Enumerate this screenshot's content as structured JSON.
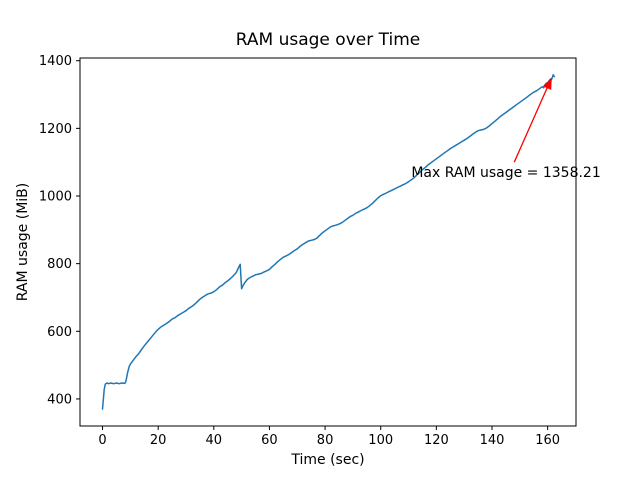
{
  "figure": {
    "background": "#ffffff"
  },
  "chart_data": {
    "type": "line",
    "title": "RAM usage over Time",
    "xlabel": "Time (sec)",
    "ylabel": "RAM usage (MiB)",
    "xlim": [
      -8.1,
      170.2
    ],
    "ylim": [
      320,
      1408
    ],
    "xticks": [
      0,
      20,
      40,
      60,
      80,
      100,
      120,
      140,
      160
    ],
    "yticks": [
      400,
      600,
      800,
      1000,
      1200,
      1400
    ],
    "grid": false,
    "legend": null,
    "series": [
      {
        "name": "ram-usage",
        "color": "#1f77b4",
        "points": [
          [
            0,
            370
          ],
          [
            0.6,
            428
          ],
          [
            1,
            444
          ],
          [
            1.6,
            447
          ],
          [
            2.2,
            445
          ],
          [
            3,
            447
          ],
          [
            4,
            445
          ],
          [
            5,
            447
          ],
          [
            6,
            445
          ],
          [
            7,
            447
          ],
          [
            8,
            446
          ],
          [
            8.4,
            452
          ],
          [
            9,
            478
          ],
          [
            9.6,
            496
          ],
          [
            10,
            503
          ],
          [
            11,
            514
          ],
          [
            12,
            525
          ],
          [
            13,
            534
          ],
          [
            14,
            546
          ],
          [
            15,
            557
          ],
          [
            16,
            567
          ],
          [
            17,
            577
          ],
          [
            18,
            587
          ],
          [
            19,
            597
          ],
          [
            20,
            606
          ],
          [
            21,
            613
          ],
          [
            22,
            618
          ],
          [
            23,
            623
          ],
          [
            24,
            629
          ],
          [
            25,
            636
          ],
          [
            26,
            640
          ],
          [
            27,
            646
          ],
          [
            28,
            651
          ],
          [
            29,
            656
          ],
          [
            30,
            661
          ],
          [
            31,
            668
          ],
          [
            32,
            673
          ],
          [
            33,
            679
          ],
          [
            34,
            687
          ],
          [
            35,
            695
          ],
          [
            36,
            701
          ],
          [
            37,
            706
          ],
          [
            38,
            711
          ],
          [
            39,
            713
          ],
          [
            40,
            717
          ],
          [
            41,
            723
          ],
          [
            42,
            731
          ],
          [
            43,
            736
          ],
          [
            44,
            743
          ],
          [
            45,
            749
          ],
          [
            46,
            756
          ],
          [
            47,
            764
          ],
          [
            48,
            773
          ],
          [
            49,
            790
          ],
          [
            49.5,
            798
          ],
          [
            50,
            726
          ],
          [
            50.5,
            735
          ],
          [
            51,
            742
          ],
          [
            52,
            753
          ],
          [
            53,
            759
          ],
          [
            54,
            763
          ],
          [
            55,
            767
          ],
          [
            56,
            769
          ],
          [
            57,
            771
          ],
          [
            58,
            775
          ],
          [
            59,
            779
          ],
          [
            60,
            783
          ],
          [
            61,
            791
          ],
          [
            62,
            798
          ],
          [
            63,
            806
          ],
          [
            64,
            813
          ],
          [
            65,
            819
          ],
          [
            66,
            823
          ],
          [
            67,
            827
          ],
          [
            68,
            833
          ],
          [
            69,
            839
          ],
          [
            70,
            844
          ],
          [
            71,
            851
          ],
          [
            72,
            857
          ],
          [
            73,
            862
          ],
          [
            74,
            867
          ],
          [
            75,
            869
          ],
          [
            76,
            871
          ],
          [
            77,
            875
          ],
          [
            78,
            883
          ],
          [
            79,
            891
          ],
          [
            80,
            897
          ],
          [
            81,
            903
          ],
          [
            82,
            909
          ],
          [
            83,
            912
          ],
          [
            84,
            914
          ],
          [
            85,
            917
          ],
          [
            86,
            921
          ],
          [
            87,
            927
          ],
          [
            88,
            933
          ],
          [
            89,
            939
          ],
          [
            90,
            943
          ],
          [
            91,
            949
          ],
          [
            92,
            953
          ],
          [
            93,
            957
          ],
          [
            94,
            961
          ],
          [
            95,
            965
          ],
          [
            96,
            971
          ],
          [
            97,
            978
          ],
          [
            98,
            986
          ],
          [
            99,
            994
          ],
          [
            100,
            1001
          ],
          [
            101,
            1005
          ],
          [
            102,
            1009
          ],
          [
            103,
            1013
          ],
          [
            104,
            1017
          ],
          [
            105,
            1021
          ],
          [
            106,
            1025
          ],
          [
            107,
            1029
          ],
          [
            108,
            1033
          ],
          [
            109,
            1037
          ],
          [
            110,
            1042
          ],
          [
            111,
            1048
          ],
          [
            112,
            1054
          ],
          [
            113,
            1062
          ],
          [
            114,
            1070
          ],
          [
            115,
            1078
          ],
          [
            116,
            1084
          ],
          [
            117,
            1092
          ],
          [
            118,
            1098
          ],
          [
            119,
            1104
          ],
          [
            120,
            1110
          ],
          [
            121,
            1116
          ],
          [
            122,
            1122
          ],
          [
            123,
            1128
          ],
          [
            124,
            1134
          ],
          [
            125,
            1140
          ],
          [
            126,
            1145
          ],
          [
            127,
            1150
          ],
          [
            128,
            1155
          ],
          [
            129,
            1160
          ],
          [
            130,
            1165
          ],
          [
            131,
            1170
          ],
          [
            132,
            1176
          ],
          [
            133,
            1182
          ],
          [
            134,
            1188
          ],
          [
            135,
            1193
          ],
          [
            136,
            1195
          ],
          [
            137,
            1197
          ],
          [
            138,
            1201
          ],
          [
            139,
            1207
          ],
          [
            140,
            1214
          ],
          [
            141,
            1221
          ],
          [
            142,
            1228
          ],
          [
            143,
            1235
          ],
          [
            144,
            1241
          ],
          [
            145,
            1247
          ],
          [
            146,
            1253
          ],
          [
            147,
            1259
          ],
          [
            148,
            1265
          ],
          [
            149,
            1271
          ],
          [
            150,
            1277
          ],
          [
            151,
            1283
          ],
          [
            152,
            1289
          ],
          [
            153,
            1295
          ],
          [
            154,
            1301
          ],
          [
            155,
            1307
          ],
          [
            156,
            1311
          ],
          [
            157,
            1317
          ],
          [
            158,
            1323
          ],
          [
            158.6,
            1320
          ],
          [
            159,
            1328
          ],
          [
            159.6,
            1334
          ],
          [
            160,
            1331
          ],
          [
            160.5,
            1340
          ],
          [
            161,
            1346
          ],
          [
            161.4,
            1344
          ],
          [
            161.8,
            1352
          ],
          [
            162,
            1358.21
          ],
          [
            162.4,
            1353
          ]
        ]
      }
    ],
    "annotation": {
      "text": "Max RAM usage = 1358.21",
      "color": "#ff0000",
      "text_xy": [
        111,
        1056
      ],
      "arrow_tail": [
        148,
        1100
      ],
      "arrow_head": [
        161.3,
        1347
      ]
    }
  }
}
